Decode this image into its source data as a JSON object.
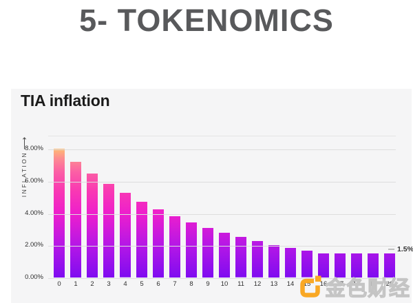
{
  "page": {
    "heading": "5- TOKENOMICS"
  },
  "chart_data": {
    "type": "bar",
    "title": "TIA inflation",
    "categories": [
      "0",
      "1",
      "2",
      "3",
      "4",
      "5",
      "6",
      "7",
      "8",
      "9",
      "10",
      "11",
      "12",
      "13",
      "14",
      "15",
      "16",
      "17",
      "18",
      "19",
      "20"
    ],
    "values": [
      8.0,
      7.2,
      6.48,
      5.83,
      5.25,
      4.72,
      4.25,
      3.83,
      3.44,
      3.1,
      2.79,
      2.51,
      2.26,
      2.03,
      1.83,
      1.65,
      1.5,
      1.5,
      1.5,
      1.5,
      1.5
    ],
    "xlabel": "",
    "ylabel": "INFLATION",
    "ylim": [
      0,
      8.8
    ],
    "yticks": [
      {
        "value": 8,
        "label": "8.00%"
      },
      {
        "value": 6,
        "label": "6.00%"
      },
      {
        "value": 4,
        "label": "4.00%"
      },
      {
        "value": 2,
        "label": "2.00%"
      },
      {
        "value": 0,
        "label": "0.00%"
      }
    ],
    "annotation": {
      "value": 1.5,
      "label": "1.5%"
    },
    "legend_position": "none",
    "grid": true,
    "bar_gradient_stops": [
      {
        "color": "#7F0CF0",
        "pos": 0
      },
      {
        "color": "#B517E6",
        "pos": 25
      },
      {
        "color": "#EE1FCC",
        "pos": 50
      },
      {
        "color": "#F93AB2",
        "pos": 68
      },
      {
        "color": "#FB5FA5",
        "pos": 82
      },
      {
        "color": "#FD8A92",
        "pos": 92
      },
      {
        "color": "#FFBB72",
        "pos": 100
      }
    ]
  },
  "icons": {
    "y_axis_arrow": "⟶"
  },
  "watermark": {
    "text": "金色财经",
    "logo_color": "#F9A825"
  },
  "colors": {
    "heading": "#58595B",
    "card_background": "#F5F5F6",
    "gridline": "#DDDDDD",
    "tick_text": "#2E2E2E",
    "title_text": "#1B1B1B",
    "annotation_text": "#333333"
  }
}
